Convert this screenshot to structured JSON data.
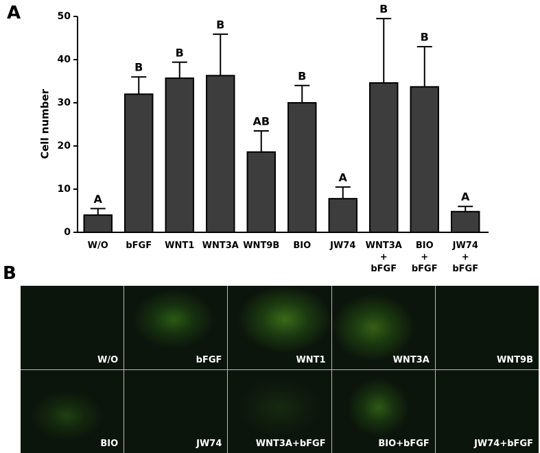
{
  "panel_labels": [
    "A",
    "B"
  ],
  "chart_data": {
    "type": "bar",
    "y_label": "Cell number",
    "categories": [
      "W/O",
      "bFGF",
      "WNT1",
      "WNT3A",
      "WNT9B",
      "BIO",
      "JW74",
      "WNT3A\n+\nbFGF",
      "BIO\n+\nbFGF",
      "JW74\n+\nbFGF"
    ],
    "values": [
      4.0,
      32.0,
      35.7,
      36.3,
      18.6,
      30.0,
      7.8,
      34.6,
      33.7,
      4.8
    ],
    "errors": [
      1.5,
      4.0,
      3.7,
      9.6,
      4.9,
      4.0,
      2.7,
      14.9,
      9.3,
      1.2
    ],
    "annotations": [
      "A",
      "B",
      "B",
      "B",
      "AB",
      "B",
      "A",
      "B",
      "B",
      "A"
    ],
    "color": "#3d3d3d",
    "ylim": [
      0,
      50
    ],
    "yticks": [
      0,
      10,
      20,
      30,
      40,
      50
    ]
  },
  "image_panel": {
    "labels": [
      "W/O",
      "bFGF",
      "WNT1",
      "WNT3A",
      "WNT9B",
      "BIO",
      "JW74",
      "WNT3A+bFGF",
      "BIO+bFGF",
      "JW74+bFGF"
    ]
  }
}
